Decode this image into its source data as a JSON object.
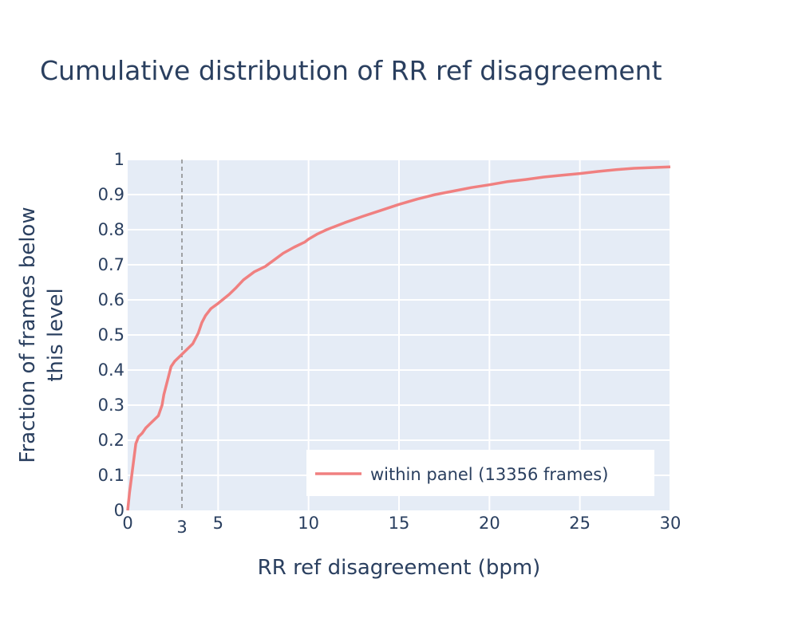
{
  "chart_data": {
    "type": "line",
    "title": "Cumulative distribution of RR ref disagreement",
    "xlabel": "RR ref disagreement (bpm)",
    "ylabel_line1": "Fraction of frames below",
    "ylabel_line2": "this level",
    "xlim": [
      0,
      30
    ],
    "ylim": [
      0,
      1
    ],
    "x_ticks": [
      "0",
      "3",
      "5",
      "10",
      "15",
      "20",
      "25",
      "30"
    ],
    "x_tick_values": [
      0,
      3,
      5,
      10,
      15,
      20,
      25,
      30
    ],
    "y_ticks": [
      "0",
      "0.1",
      "0.2",
      "0.3",
      "0.4",
      "0.5",
      "0.6",
      "0.7",
      "0.8",
      "0.9",
      "1"
    ],
    "y_tick_values": [
      0,
      0.1,
      0.2,
      0.3,
      0.4,
      0.5,
      0.6,
      0.7,
      0.8,
      0.9,
      1.0
    ],
    "grid": true,
    "reference_line": {
      "x": 3,
      "style": "dashed",
      "color": "#888888"
    },
    "legend": {
      "placement": "bottom-right"
    },
    "series": [
      {
        "name": "within panel (13356 frames)",
        "color": "#f08080",
        "x": [
          0,
          0.1,
          0.25,
          0.45,
          0.6,
          0.8,
          1.0,
          1.3,
          1.7,
          1.9,
          2.0,
          2.2,
          2.4,
          2.6,
          3.0,
          3.3,
          3.6,
          3.9,
          4.1,
          4.3,
          4.6,
          5.0,
          5.6,
          6.0,
          6.4,
          7.0,
          7.6,
          8.0,
          8.6,
          9.2,
          9.8,
          10.0,
          10.5,
          11.0,
          12.0,
          13.0,
          14.0,
          15.0,
          16.0,
          17.0,
          18.0,
          19.0,
          20.0,
          21.0,
          22.0,
          23.0,
          24.0,
          25.0,
          26.0,
          27.0,
          28.0,
          29.0,
          30.0
        ],
        "values": [
          0,
          0.05,
          0.11,
          0.19,
          0.21,
          0.22,
          0.235,
          0.25,
          0.27,
          0.3,
          0.33,
          0.37,
          0.41,
          0.425,
          0.445,
          0.46,
          0.475,
          0.505,
          0.535,
          0.555,
          0.575,
          0.59,
          0.615,
          0.635,
          0.657,
          0.68,
          0.695,
          0.71,
          0.733,
          0.75,
          0.765,
          0.773,
          0.788,
          0.8,
          0.82,
          0.838,
          0.855,
          0.872,
          0.887,
          0.9,
          0.91,
          0.92,
          0.928,
          0.937,
          0.943,
          0.95,
          0.955,
          0.96,
          0.966,
          0.971,
          0.975,
          0.977,
          0.979
        ]
      }
    ]
  }
}
